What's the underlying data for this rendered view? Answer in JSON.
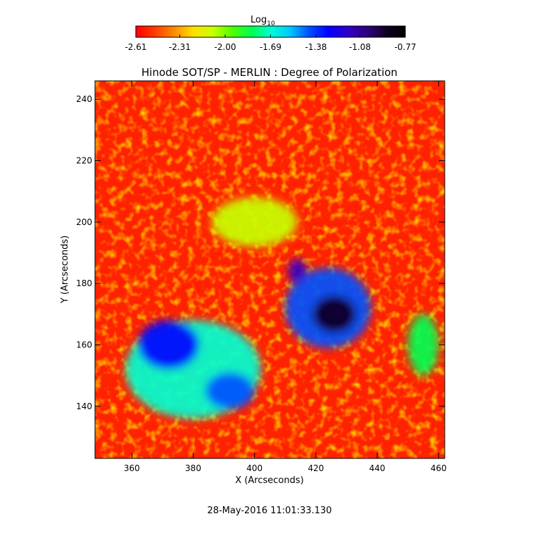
{
  "colorbar": {
    "label_main": "Log",
    "label_sub": "10",
    "ticks": [
      "-2.61",
      "-2.31",
      "-2.00",
      "-1.69",
      "-1.38",
      "-1.08",
      "-0.77"
    ],
    "range": [
      -2.61,
      -0.77
    ],
    "colors": [
      "#ff0000",
      "#ff3c00",
      "#ff8c00",
      "#ffe000",
      "#c8ff00",
      "#50ff00",
      "#00ff50",
      "#00ffd0",
      "#00c8ff",
      "#0050ff",
      "#0000ff",
      "#3000c8",
      "#300080",
      "#100020",
      "#000000"
    ]
  },
  "timestamp": "28-May-2016 11:01:33.130",
  "chart_data": {
    "type": "heatmap",
    "title": "Hinode SOT/SP - MERLIN : Degree of Polarization",
    "xlabel": "X (Arcseconds)",
    "ylabel": "Y (Arcseconds)",
    "xlim": [
      348,
      462
    ],
    "ylim": [
      123,
      246
    ],
    "xticks": [
      "360",
      "380",
      "400",
      "420",
      "440",
      "460"
    ],
    "yticks": [
      "140",
      "160",
      "180",
      "200",
      "220",
      "240"
    ],
    "xtick_values": [
      360,
      380,
      400,
      420,
      440,
      460
    ],
    "ytick_values": [
      140,
      160,
      180,
      200,
      220,
      240
    ],
    "value_scale": "log10",
    "value_range": [
      -2.61,
      -0.77
    ],
    "features": [
      {
        "kind": "sunspot-umbra",
        "x": 426,
        "y": 170,
        "rx": 7,
        "ry": 6,
        "value": -0.85
      },
      {
        "kind": "penumbra",
        "x": 424,
        "y": 172,
        "rx": 14,
        "ry": 13,
        "value": -1.4
      },
      {
        "kind": "pore",
        "x": 414,
        "y": 184,
        "rx": 3,
        "ry": 4,
        "value": -1.1
      },
      {
        "kind": "plage",
        "x": 380,
        "y": 152,
        "rx": 22,
        "ry": 16,
        "value": -1.7
      },
      {
        "kind": "plage",
        "x": 372,
        "y": 160,
        "rx": 10,
        "ry": 8,
        "value": -1.3
      },
      {
        "kind": "plage",
        "x": 392,
        "y": 145,
        "rx": 8,
        "ry": 6,
        "value": -1.4
      },
      {
        "kind": "network",
        "x": 455,
        "y": 160,
        "rx": 5,
        "ry": 10,
        "value": -1.8
      },
      {
        "kind": "network",
        "x": 400,
        "y": 200,
        "rx": 14,
        "ry": 8,
        "value": -2.05
      }
    ]
  }
}
